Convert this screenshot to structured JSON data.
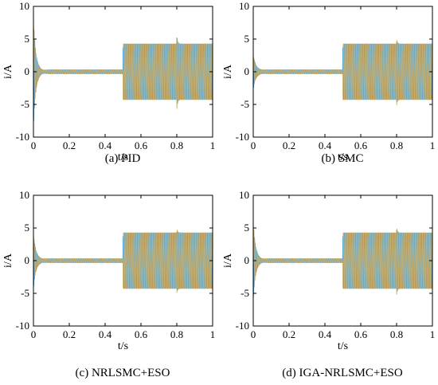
{
  "chart_data": [
    {
      "type": "line",
      "caption": "(a) PID",
      "xlabel": "t/s",
      "ylabel": "i/A",
      "xlim": [
        0,
        1
      ],
      "ylim": [
        -10,
        10
      ],
      "xticks": [
        "0",
        "0.2",
        "0.4",
        "0.6",
        "0.8",
        "1"
      ],
      "yticks": [
        "-10",
        "-5",
        "0",
        "5",
        "10"
      ],
      "initial_spike": 8.7,
      "steady_amplitude_before": 0.3,
      "amplitude_after_load": 4.3,
      "load_time": 0.5,
      "disturbance_time": 0.8,
      "disturbance_peak": 6.0,
      "series": [
        {
          "color": "#e0a040",
          "phase": 0.0
        },
        {
          "color": "#4aa3d8",
          "phase": 2.094
        },
        {
          "color": "#c9b070",
          "phase": 4.189
        }
      ]
    },
    {
      "type": "line",
      "caption": "(b) SMC",
      "xlabel": "t/s",
      "ylabel": "i/A",
      "xlim": [
        0,
        1
      ],
      "ylim": [
        -10,
        10
      ],
      "xticks": [
        "0",
        "0.2",
        "0.4",
        "0.6",
        "0.8",
        "1"
      ],
      "yticks": [
        "-10",
        "-5",
        "0",
        "5",
        "10"
      ],
      "initial_spike": 2.8,
      "steady_amplitude_before": 0.3,
      "amplitude_after_load": 4.3,
      "load_time": 0.5,
      "disturbance_time": 0.8,
      "disturbance_peak": 5.3,
      "series": [
        {
          "color": "#e0a040",
          "phase": 0.0
        },
        {
          "color": "#4aa3d8",
          "phase": 2.094
        },
        {
          "color": "#c9b070",
          "phase": 4.189
        }
      ]
    },
    {
      "type": "line",
      "caption": "(c) NRLSMC+ESO",
      "xlabel": "t/s",
      "ylabel": "i/A",
      "xlim": [
        0,
        1
      ],
      "ylim": [
        -10,
        10
      ],
      "xticks": [
        "0",
        "0.2",
        "0.4",
        "0.6",
        "0.8",
        "1"
      ],
      "yticks": [
        "-10",
        "-5",
        "0",
        "5",
        "10"
      ],
      "initial_spike": 4.5,
      "steady_amplitude_before": 0.3,
      "amplitude_after_load": 4.3,
      "load_time": 0.5,
      "disturbance_time": 0.8,
      "disturbance_peak": 5.1,
      "series": [
        {
          "color": "#e0a040",
          "phase": 0.0
        },
        {
          "color": "#4aa3d8",
          "phase": 2.094
        },
        {
          "color": "#c9b070",
          "phase": 4.189
        }
      ]
    },
    {
      "type": "line",
      "caption": "(d) IGA-NRLSMC+ESO",
      "xlabel": "t/s",
      "ylabel": "i/A",
      "xlim": [
        0,
        1
      ],
      "ylim": [
        -10,
        10
      ],
      "xticks": [
        "0",
        "0.2",
        "0.4",
        "0.6",
        "0.8",
        "1"
      ],
      "yticks": [
        "-10",
        "-5",
        "0",
        "5",
        "10"
      ],
      "initial_spike": 6.3,
      "steady_amplitude_before": 0.3,
      "amplitude_after_load": 4.3,
      "load_time": 0.5,
      "disturbance_time": 0.8,
      "disturbance_peak": 5.4,
      "series": [
        {
          "color": "#e0a040",
          "phase": 0.0
        },
        {
          "color": "#4aa3d8",
          "phase": 2.094
        },
        {
          "color": "#c9b070",
          "phase": 4.189
        }
      ]
    }
  ]
}
